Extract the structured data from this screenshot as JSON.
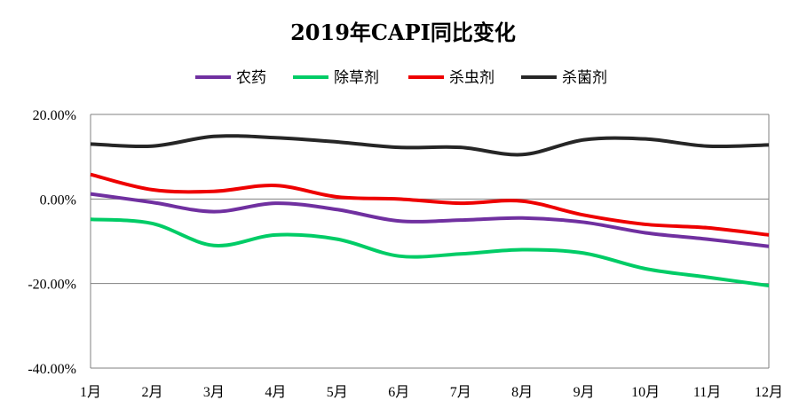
{
  "chart_data": {
    "type": "line",
    "title": "2019年CAPI同比变化",
    "xlabel": "",
    "ylabel": "",
    "categories": [
      "1月",
      "2月",
      "3月",
      "4月",
      "5月",
      "6月",
      "7月",
      "8月",
      "9月",
      "10月",
      "11月",
      "12月"
    ],
    "ylim": [
      -40,
      20
    ],
    "yticks": [
      20,
      0,
      -20,
      -40
    ],
    "ytick_labels": [
      "20.00%",
      "0.00%",
      "-20.00%",
      "-40.00%"
    ],
    "grid": true,
    "legend_position": "top",
    "series": [
      {
        "name": "农药",
        "color": "#7030A0",
        "values": [
          1.2,
          -0.8,
          -3.0,
          -1.0,
          -2.5,
          -5.2,
          -5.0,
          -4.5,
          -5.5,
          -8.0,
          -9.5,
          -11.2
        ]
      },
      {
        "name": "除草剂",
        "color": "#00CC66",
        "values": [
          -4.8,
          -5.8,
          -11.0,
          -8.5,
          -9.5,
          -13.5,
          -13.0,
          -12.0,
          -12.8,
          -16.5,
          -18.5,
          -20.5
        ]
      },
      {
        "name": "杀虫剂",
        "color": "#EE0000",
        "values": [
          5.8,
          2.2,
          1.8,
          3.2,
          0.5,
          0.0,
          -1.0,
          -0.5,
          -3.8,
          -6.0,
          -6.8,
          -8.5
        ]
      },
      {
        "name": "杀菌剂",
        "color": "#262626",
        "values": [
          13.0,
          12.5,
          14.8,
          14.5,
          13.5,
          12.2,
          12.2,
          10.5,
          14.0,
          14.2,
          12.5,
          12.8
        ]
      }
    ]
  }
}
